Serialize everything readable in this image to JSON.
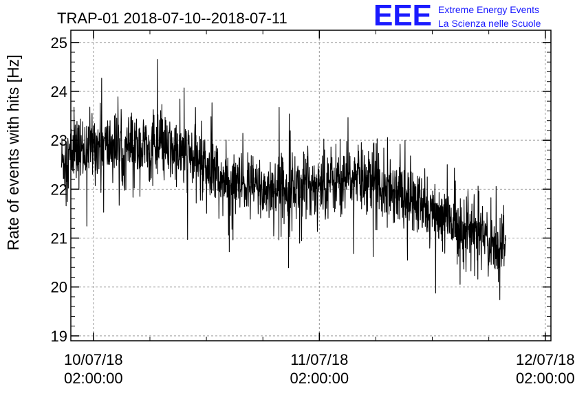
{
  "chart_data": {
    "type": "line",
    "title": "TRAP-01 2018-07-10--2018-07-11",
    "ylabel": "Rate of events with hits [Hz]",
    "xlabel": "",
    "ylim": [
      18.9,
      25.25
    ],
    "y_ticks": [
      19,
      20,
      21,
      22,
      23,
      24,
      25
    ],
    "x_range_hours": [
      -2.4,
      48.6
    ],
    "x_ticks": [
      {
        "hour": 0,
        "date": "10/07/18",
        "time": "02:00:00"
      },
      {
        "hour": 24,
        "date": "11/07/18",
        "time": "02:00:00"
      },
      {
        "hour": 48,
        "date": "12/07/18",
        "time": "02:00:00"
      }
    ],
    "grid": true,
    "series": [
      {
        "x_start_hour": -3.4,
        "x_end_hour": 43.8,
        "trend": [
          [
            -3.4,
            22.55
          ],
          [
            -2.0,
            22.75
          ],
          [
            0,
            22.9
          ],
          [
            4,
            22.85
          ],
          [
            8,
            22.8
          ],
          [
            12,
            22.55
          ],
          [
            14,
            22.1
          ],
          [
            18,
            22.0
          ],
          [
            22,
            22.05
          ],
          [
            26,
            22.2
          ],
          [
            30,
            22.2
          ],
          [
            32,
            22.0
          ],
          [
            36,
            21.5
          ],
          [
            40,
            21.15
          ],
          [
            43.8,
            20.8
          ]
        ],
        "noise_amplitude": 0.55
      }
    ]
  },
  "logo": {
    "mark": "EEE",
    "line1": "Extreme Energy Events",
    "line2": "La Scienza nelle Scuole",
    "color": "#1a1aff"
  }
}
